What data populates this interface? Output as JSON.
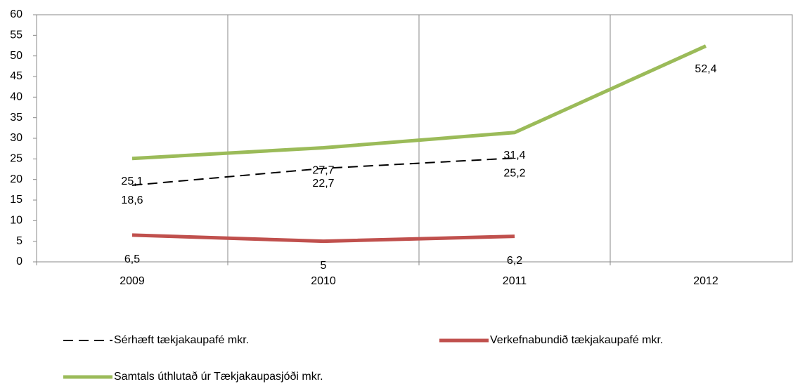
{
  "chart_data": {
    "type": "line",
    "categories": [
      "2009",
      "2010",
      "2011",
      "2012"
    ],
    "series": [
      {
        "name": "Sérhæft tækjakaupafé mkr.",
        "color": "#000000",
        "dashed": true,
        "values": [
          18.6,
          22.7,
          25.2,
          null
        ],
        "value_labels": [
          "18,6",
          "22,7",
          "25,2",
          null
        ]
      },
      {
        "name": "Verkefnabundið tækjakaupafé mkr.",
        "color": "#c0504d",
        "values": [
          6.5,
          5,
          6.2,
          null
        ],
        "value_labels": [
          "6,5",
          "5",
          "6,2",
          null
        ]
      },
      {
        "name": "Samtals úthlutað úr Tækjakaupasjóði mkr.",
        "color": "#9bbb59",
        "values": [
          25.1,
          27.7,
          31.4,
          52.4
        ],
        "value_labels": [
          "25,1",
          "27,7",
          "31,4",
          "52,4"
        ]
      }
    ],
    "ylim": [
      0,
      60
    ],
    "yticks": [
      0,
      5,
      10,
      15,
      20,
      25,
      30,
      35,
      40,
      45,
      50,
      55,
      60
    ],
    "grid": "x"
  }
}
